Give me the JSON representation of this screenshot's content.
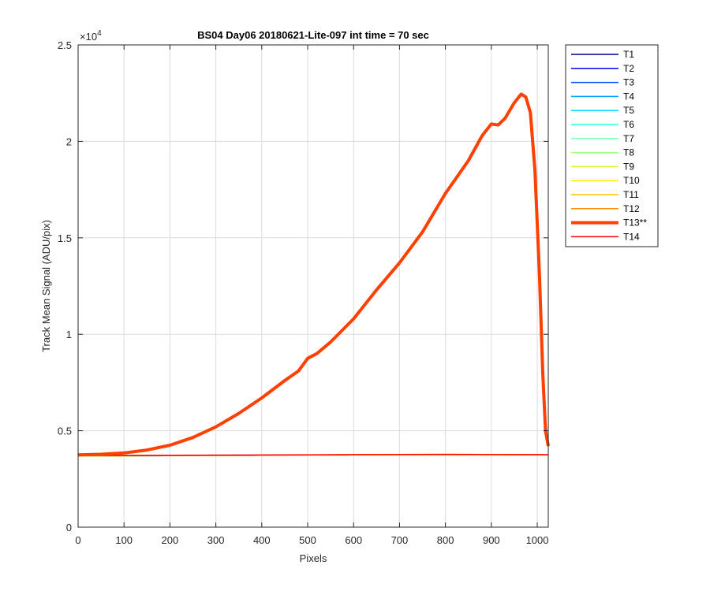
{
  "chart_data": {
    "type": "line",
    "title": "BS04 Day06 20180621-Lite-097 int time = 70 sec",
    "xlabel": "Pixels",
    "ylabel": "Track Mean Signal (ADU/pix)",
    "y_exponent_label": "×10",
    "y_exponent_power": "4",
    "xlim": [
      0,
      1024
    ],
    "ylim": [
      0,
      25000
    ],
    "y_scale_factor": 10000,
    "xticks": [
      0,
      100,
      200,
      300,
      400,
      500,
      600,
      700,
      800,
      900,
      1000
    ],
    "xtick_labels": [
      "0",
      "100",
      "200",
      "300",
      "400",
      "500",
      "600",
      "700",
      "800",
      "900",
      "1000"
    ],
    "yticks": [
      0,
      5000,
      10000,
      15000,
      20000,
      25000
    ],
    "ytick_labels": [
      "0",
      "0.5",
      "1",
      "1.5",
      "2",
      "2.5"
    ],
    "grid": true,
    "legend_position": "outside-top-right",
    "series": [
      {
        "name": "T1",
        "color": "#00008f",
        "emphasis": false,
        "points": [
          [
            0,
            3700
          ],
          [
            200,
            3710
          ],
          [
            400,
            3730
          ],
          [
            600,
            3750
          ],
          [
            800,
            3760
          ],
          [
            1024,
            3750
          ]
        ]
      },
      {
        "name": "T2",
        "color": "#0000ef",
        "emphasis": false,
        "points": [
          [
            0,
            3700
          ],
          [
            200,
            3710
          ],
          [
            400,
            3730
          ],
          [
            600,
            3750
          ],
          [
            800,
            3760
          ],
          [
            1024,
            3750
          ]
        ]
      },
      {
        "name": "T3",
        "color": "#004fff",
        "emphasis": false,
        "points": [
          [
            0,
            3700
          ],
          [
            200,
            3710
          ],
          [
            400,
            3730
          ],
          [
            600,
            3750
          ],
          [
            800,
            3760
          ],
          [
            1024,
            3750
          ]
        ]
      },
      {
        "name": "T4",
        "color": "#00a0ff",
        "emphasis": false,
        "points": [
          [
            0,
            3700
          ],
          [
            200,
            3710
          ],
          [
            400,
            3730
          ],
          [
            600,
            3750
          ],
          [
            800,
            3760
          ],
          [
            1024,
            3750
          ]
        ]
      },
      {
        "name": "T5",
        "color": "#00dfff",
        "emphasis": false,
        "points": [
          [
            0,
            3700
          ],
          [
            200,
            3710
          ],
          [
            400,
            3730
          ],
          [
            600,
            3750
          ],
          [
            800,
            3760
          ],
          [
            1024,
            3750
          ]
        ]
      },
      {
        "name": "T6",
        "color": "#2fffdf",
        "emphasis": false,
        "points": [
          [
            0,
            3700
          ],
          [
            200,
            3710
          ],
          [
            400,
            3730
          ],
          [
            600,
            3750
          ],
          [
            800,
            3760
          ],
          [
            1024,
            3750
          ]
        ]
      },
      {
        "name": "T7",
        "color": "#80ffb0",
        "emphasis": false,
        "points": [
          [
            0,
            3700
          ],
          [
            200,
            3710
          ],
          [
            400,
            3730
          ],
          [
            600,
            3750
          ],
          [
            800,
            3760
          ],
          [
            1024,
            3750
          ]
        ]
      },
      {
        "name": "T8",
        "color": "#a0ff80",
        "emphasis": false,
        "points": [
          [
            0,
            3700
          ],
          [
            200,
            3710
          ],
          [
            400,
            3730
          ],
          [
            600,
            3750
          ],
          [
            800,
            3760
          ],
          [
            1024,
            3750
          ]
        ]
      },
      {
        "name": "T9",
        "color": "#cfff30",
        "emphasis": false,
        "points": [
          [
            0,
            3700
          ],
          [
            200,
            3710
          ],
          [
            400,
            3730
          ],
          [
            600,
            3750
          ],
          [
            800,
            3760
          ],
          [
            1024,
            3750
          ]
        ]
      },
      {
        "name": "T10",
        "color": "#ffef00",
        "emphasis": false,
        "points": [
          [
            0,
            3700
          ],
          [
            200,
            3710
          ],
          [
            400,
            3730
          ],
          [
            600,
            3750
          ],
          [
            800,
            3760
          ],
          [
            1024,
            3750
          ]
        ]
      },
      {
        "name": "T11",
        "color": "#ffbf00",
        "emphasis": false,
        "points": [
          [
            0,
            3700
          ],
          [
            200,
            3710
          ],
          [
            400,
            3730
          ],
          [
            600,
            3760
          ],
          [
            800,
            3780
          ],
          [
            1024,
            3750
          ]
        ]
      },
      {
        "name": "T12",
        "color": "#ff8f00",
        "emphasis": false,
        "points": [
          [
            0,
            3700
          ],
          [
            200,
            3710
          ],
          [
            400,
            3730
          ],
          [
            600,
            3760
          ],
          [
            800,
            3780
          ],
          [
            1024,
            3750
          ]
        ]
      },
      {
        "name": "T13**",
        "color": "#ff4000",
        "emphasis": true,
        "points": [
          [
            0,
            3750
          ],
          [
            50,
            3780
          ],
          [
            100,
            3850
          ],
          [
            150,
            4000
          ],
          [
            200,
            4250
          ],
          [
            250,
            4650
          ],
          [
            300,
            5200
          ],
          [
            350,
            5900
          ],
          [
            400,
            6700
          ],
          [
            450,
            7600
          ],
          [
            480,
            8100
          ],
          [
            500,
            8750
          ],
          [
            520,
            9000
          ],
          [
            550,
            9600
          ],
          [
            600,
            10800
          ],
          [
            650,
            12300
          ],
          [
            700,
            13700
          ],
          [
            750,
            15300
          ],
          [
            800,
            17300
          ],
          [
            850,
            19000
          ],
          [
            880,
            20300
          ],
          [
            900,
            20900
          ],
          [
            915,
            20850
          ],
          [
            930,
            21200
          ],
          [
            950,
            22000
          ],
          [
            965,
            22450
          ],
          [
            975,
            22300
          ],
          [
            985,
            21500
          ],
          [
            995,
            18500
          ],
          [
            1005,
            13000
          ],
          [
            1012,
            8000
          ],
          [
            1018,
            5000
          ],
          [
            1024,
            4200
          ]
        ]
      },
      {
        "name": "T14",
        "color": "#ff0000",
        "emphasis": false,
        "points": [
          [
            0,
            3720
          ],
          [
            200,
            3730
          ],
          [
            400,
            3740
          ],
          [
            600,
            3760
          ],
          [
            800,
            3770
          ],
          [
            1024,
            3760
          ]
        ]
      }
    ]
  }
}
